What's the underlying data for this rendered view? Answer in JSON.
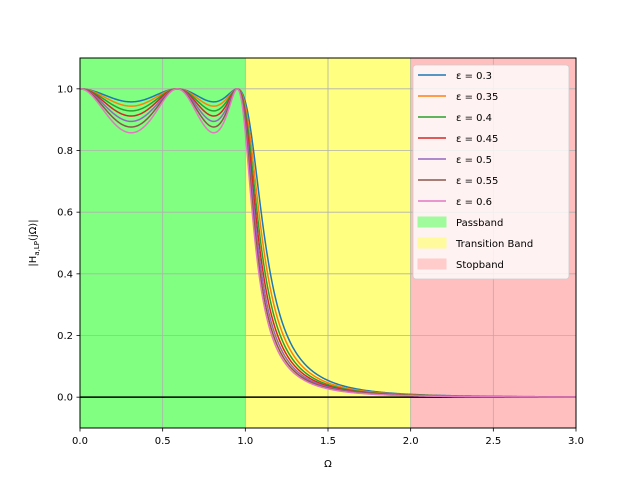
{
  "chart_data": {
    "type": "line",
    "title": "",
    "xlabel": "Ω",
    "ylabel": "|H_{a,LP}(jΩ)|",
    "xlim": [
      0.0,
      3.0
    ],
    "ylim": [
      -0.1,
      1.1
    ],
    "grid": true,
    "legend_position": "top-right",
    "x_ticks": [
      "0.0",
      "0.5",
      "1.0",
      "1.5",
      "2.0",
      "2.5",
      "3.0"
    ],
    "y_ticks": [
      "0.0",
      "0.2",
      "0.4",
      "0.6",
      "0.8",
      "1.0"
    ],
    "filter_order": 5,
    "regions": [
      {
        "name": "Passband",
        "x_start": 0.0,
        "x_end": 1.0,
        "color": "#80ff80"
      },
      {
        "name": "Transition Band",
        "x_start": 1.0,
        "x_end": 2.0,
        "color": "#ffff80"
      },
      {
        "name": "Stopband",
        "x_start": 2.0,
        "x_end": 3.0,
        "color": "#ffbfbf"
      }
    ],
    "reference_line": {
      "y": 0.0,
      "color": "#000000"
    },
    "series": [
      {
        "name": "ε = 0.3",
        "epsilon": 0.3,
        "color": "#1f77b4"
      },
      {
        "name": "ε = 0.35",
        "epsilon": 0.35,
        "color": "#ff7f0e"
      },
      {
        "name": "ε = 0.4",
        "epsilon": 0.4,
        "color": "#2ca02c"
      },
      {
        "name": "ε = 0.45",
        "epsilon": 0.45,
        "color": "#d62728"
      },
      {
        "name": "ε = 0.5",
        "epsilon": 0.5,
        "color": "#9467bd"
      },
      {
        "name": "ε = 0.55",
        "epsilon": 0.55,
        "color": "#8c564b"
      },
      {
        "name": "ε = 0.6",
        "epsilon": 0.6,
        "color": "#e377c2"
      }
    ]
  }
}
